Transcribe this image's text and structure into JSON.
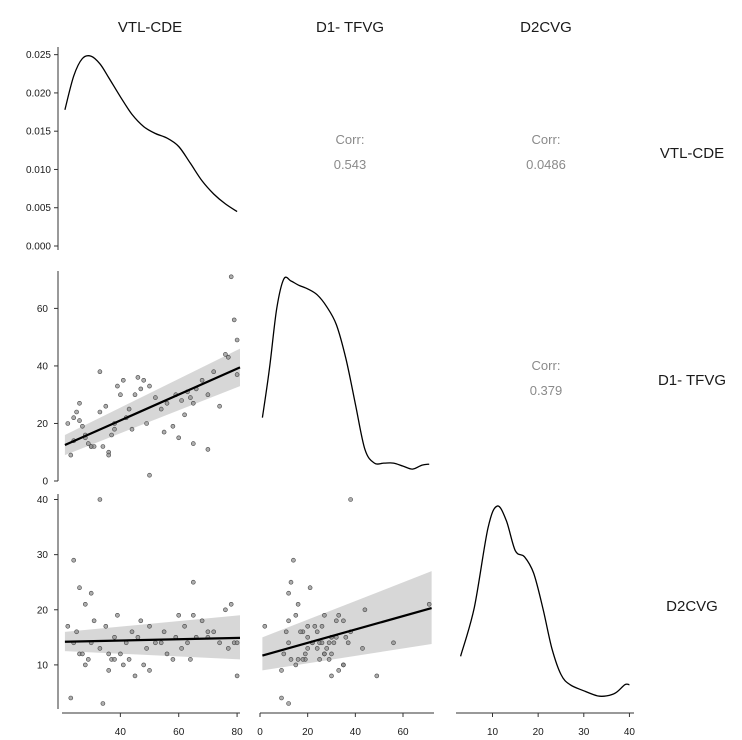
{
  "chart_data": {
    "type": "scatter",
    "matrix": "pairs",
    "variables": [
      "VTL-CDE",
      "D1- TFVG",
      "D2CVG"
    ],
    "corr_label": "Corr:",
    "correlations": [
      {
        "row": 0,
        "col": 1,
        "value": "0.543"
      },
      {
        "row": 0,
        "col": 2,
        "value": "0.0486"
      },
      {
        "row": 1,
        "col": 2,
        "value": "0.379"
      }
    ],
    "ranges": {
      "v0": [
        20,
        81
      ],
      "v1": [
        0,
        73
      ],
      "v2": [
        2,
        41
      ],
      "density": [
        0,
        0.026
      ]
    },
    "ticks": {
      "density_y": [
        "0.000",
        "0.005",
        "0.010",
        "0.015",
        "0.020",
        "0.025"
      ],
      "v0": [
        40,
        60,
        80
      ],
      "v1": [
        0,
        20,
        40,
        60
      ],
      "v2_y": [
        10,
        20,
        30,
        40
      ],
      "v2_x": [
        10,
        20,
        30,
        40
      ]
    },
    "densities": [
      {
        "x": [
          21,
          24,
          27,
          30,
          33,
          36,
          40,
          44,
          48,
          52,
          56,
          60,
          64,
          68,
          72,
          76,
          80
        ],
        "y": [
          0.0178,
          0.0222,
          0.0245,
          0.0248,
          0.0238,
          0.022,
          0.0195,
          0.0172,
          0.0156,
          0.0147,
          0.0141,
          0.013,
          0.0108,
          0.0085,
          0.0068,
          0.0055,
          0.0045
        ]
      },
      {
        "x": [
          1,
          4,
          7,
          10,
          13,
          16,
          20,
          24,
          28,
          32,
          36,
          40,
          44,
          48,
          52,
          56,
          60,
          64,
          68,
          71
        ],
        "y": [
          0.3,
          0.55,
          0.85,
          1.0,
          0.99,
          0.97,
          0.95,
          0.92,
          0.86,
          0.77,
          0.6,
          0.37,
          0.14,
          0.07,
          0.07,
          0.07,
          0.055,
          0.04,
          0.06,
          0.065
        ]
      },
      {
        "x": [
          3,
          6,
          9,
          11,
          13,
          15,
          17,
          19,
          21,
          23,
          25,
          27,
          30,
          33,
          35,
          37,
          39,
          40
        ],
        "y": [
          0.24,
          0.48,
          0.87,
          0.98,
          0.91,
          0.76,
          0.73,
          0.65,
          0.48,
          0.28,
          0.15,
          0.1,
          0.07,
          0.045,
          0.045,
          0.06,
          0.1,
          0.1
        ]
      }
    ],
    "points": [
      [
        22,
        20,
        17
      ],
      [
        24,
        22,
        14
      ],
      [
        23,
        9,
        4
      ],
      [
        25,
        24,
        16
      ],
      [
        26,
        27,
        12
      ],
      [
        27,
        19,
        12
      ],
      [
        28,
        15,
        10
      ],
      [
        29,
        13,
        11
      ],
      [
        30,
        12,
        14
      ],
      [
        31,
        12,
        18
      ],
      [
        33,
        24,
        13
      ],
      [
        35,
        26,
        17
      ],
      [
        36,
        10,
        12
      ],
      [
        37,
        16,
        11
      ],
      [
        38,
        20,
        15
      ],
      [
        39,
        33,
        19
      ],
      [
        40,
        30,
        12
      ],
      [
        41,
        35,
        10
      ],
      [
        42,
        22,
        14
      ],
      [
        43,
        25,
        11
      ],
      [
        44,
        18,
        16
      ],
      [
        45,
        30,
        8
      ],
      [
        46,
        36,
        15
      ],
      [
        47,
        32,
        18
      ],
      [
        48,
        35,
        10
      ],
      [
        49,
        20,
        13
      ],
      [
        50,
        33,
        9
      ],
      [
        52,
        29,
        14
      ],
      [
        54,
        25,
        14
      ],
      [
        55,
        17,
        16
      ],
      [
        56,
        27,
        12
      ],
      [
        58,
        19,
        11
      ],
      [
        59,
        30,
        15
      ],
      [
        60,
        15,
        19
      ],
      [
        61,
        28,
        13
      ],
      [
        62,
        23,
        17
      ],
      [
        63,
        31,
        14
      ],
      [
        64,
        29,
        11
      ],
      [
        65,
        27,
        19
      ],
      [
        66,
        32,
        15
      ],
      [
        68,
        35,
        18
      ],
      [
        70,
        30,
        15
      ],
      [
        72,
        38,
        16
      ],
      [
        74,
        26,
        14
      ],
      [
        76,
        44,
        20
      ],
      [
        77,
        43,
        13
      ],
      [
        78,
        71,
        21
      ],
      [
        79,
        56,
        14
      ],
      [
        80,
        49,
        8
      ],
      [
        80,
        37,
        14
      ],
      [
        24,
        14,
        29
      ],
      [
        26,
        21,
        24
      ],
      [
        28,
        16,
        21
      ],
      [
        30,
        12,
        23
      ],
      [
        33,
        38,
        40
      ],
      [
        34,
        12,
        3
      ],
      [
        36,
        9,
        9
      ],
      [
        38,
        18,
        11
      ],
      [
        50,
        2,
        17
      ],
      [
        65,
        13,
        25
      ],
      [
        70,
        11,
        16
      ]
    ],
    "fits": [
      {
        "row": 1,
        "col": 0,
        "x": [
          21,
          81
        ],
        "y": [
          12.5,
          39.5
        ],
        "se_lo": [
          9,
          33
        ],
        "se_hi": [
          16,
          46
        ]
      },
      {
        "row": 2,
        "col": 0,
        "x": [
          21,
          81
        ],
        "y": [
          14.2,
          14.9
        ],
        "se_lo": [
          12.5,
          11
        ],
        "se_hi": [
          16,
          19
        ]
      },
      {
        "row": 2,
        "col": 1,
        "x": [
          1,
          72
        ],
        "y": [
          11.7,
          20.3
        ],
        "se_lo": [
          9,
          13.8
        ],
        "se_hi": [
          15,
          27
        ]
      }
    ]
  }
}
